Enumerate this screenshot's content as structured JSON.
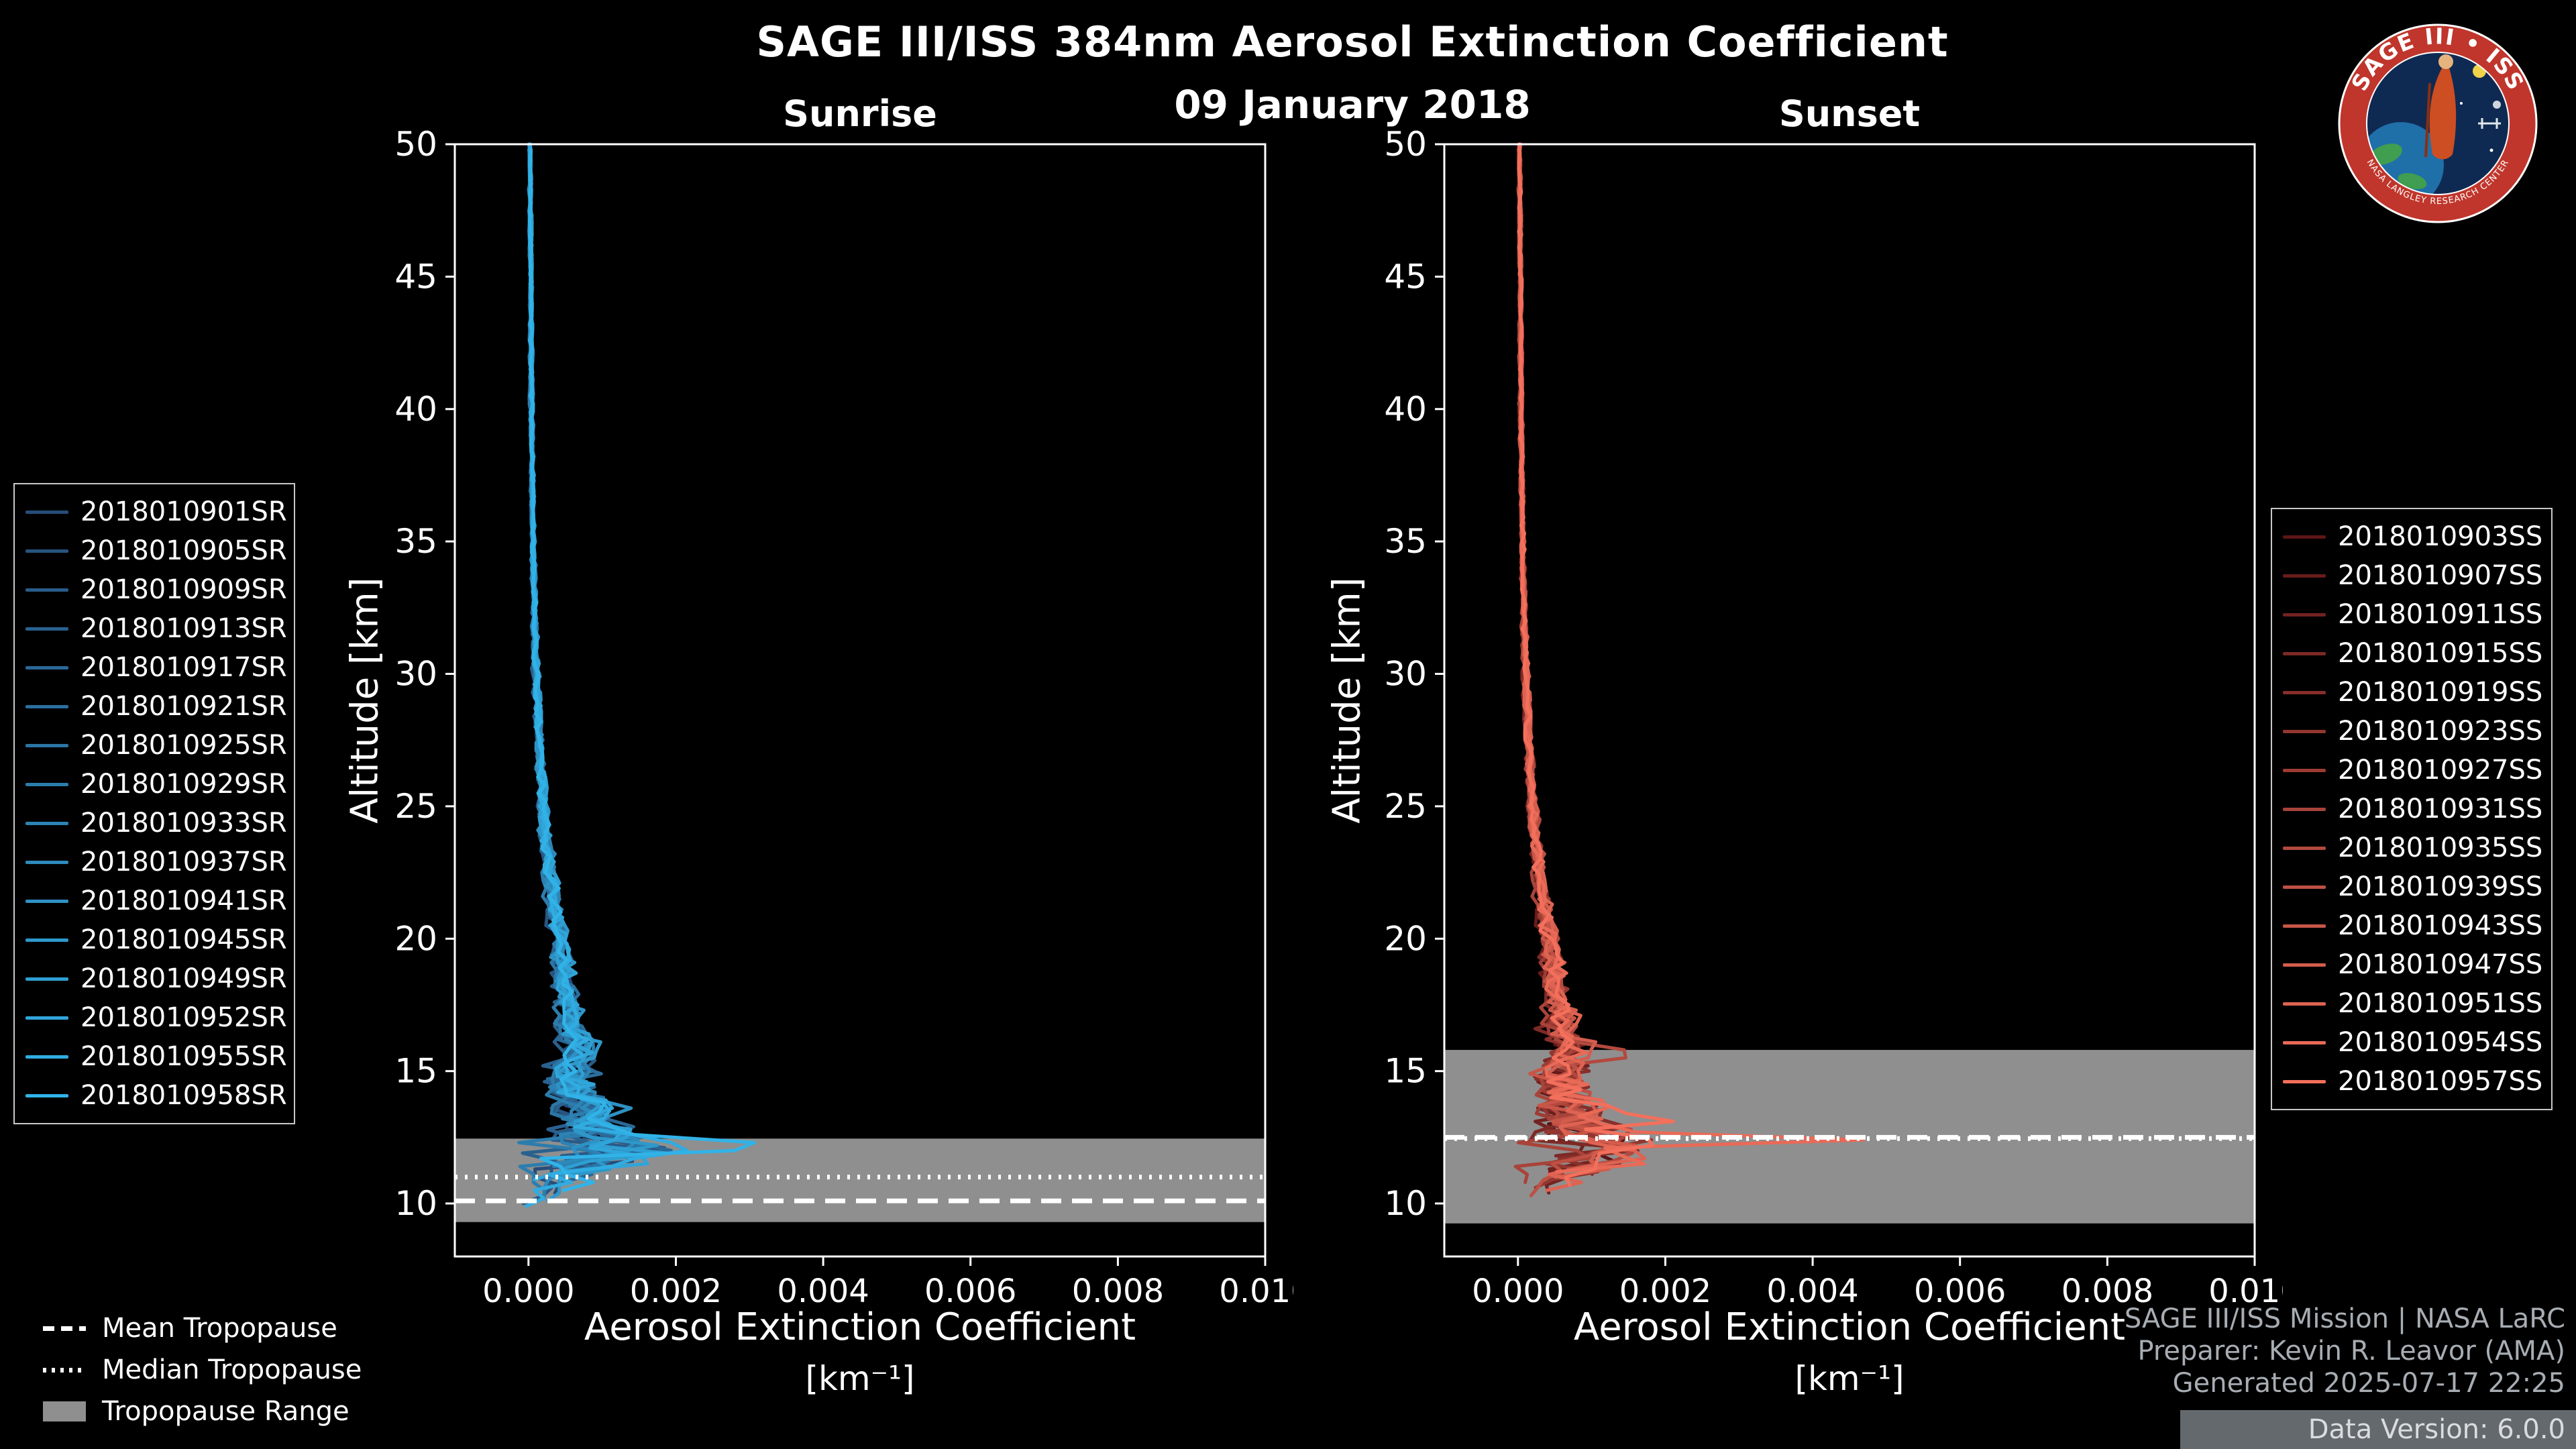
{
  "header": {
    "title": "SAGE III/ISS 384nm Aerosol Extinction Coefficient",
    "date": "09 January 2018"
  },
  "logo": {
    "arc_text": "SAGE III • ISS",
    "bottom_arc_text": "NASA LANGLEY RESEARCH CENTER"
  },
  "tropopause_legend": {
    "items": [
      {
        "label": "Mean Tropopause",
        "style": "dashed"
      },
      {
        "label": "Median Tropopause",
        "style": "dotted"
      },
      {
        "label": "Tropopause Range",
        "style": "band"
      }
    ]
  },
  "footer": {
    "lines": [
      "SAGE III/ISS Mission | NASA LaRC",
      "Preparer: Kevin R. Leavor (AMA)",
      "Generated 2025-07-17 22:25",
      "Data Version: 6.0.0"
    ]
  },
  "colors": {
    "background": "#000000",
    "axis": "#ffffff",
    "tropopause_band": "#8f8f8f",
    "footer_text": "#a7adb3",
    "footer_strip": "#64696d",
    "logo_ring_red": "#c0362c",
    "logo_inner_blue": "#0f2a52"
  },
  "chart_data": [
    {
      "panel": "sunrise",
      "type": "line",
      "title": "Sunrise",
      "xlabel": "Aerosol Extinction Coefficient",
      "xlabel_units": "[km⁻¹]",
      "ylabel": "Altitude [km]",
      "xlim": [
        -0.001,
        0.01
      ],
      "ylim": [
        8,
        50
      ],
      "xticks": [
        0.0,
        0.002,
        0.004,
        0.006,
        0.008,
        0.01
      ],
      "yticks": [
        10,
        15,
        20,
        25,
        30,
        35,
        40,
        45,
        50
      ],
      "color_start": "#274d79",
      "color_end": "#31b3e8",
      "series_labels": [
        "2018010901SR",
        "2018010905SR",
        "2018010909SR",
        "2018010913SR",
        "2018010917SR",
        "2018010921SR",
        "2018010925SR",
        "2018010929SR",
        "2018010933SR",
        "2018010937SR",
        "2018010941SR",
        "2018010945SR",
        "2018010949SR",
        "2018010952SR",
        "2018010955SR",
        "2018010958SR"
      ],
      "baseline": {
        "altitude": [
          9.8,
          10,
          10.5,
          11,
          11.5,
          12,
          12.5,
          13,
          13.5,
          14,
          14.5,
          15,
          15.5,
          16,
          17,
          18,
          19,
          20,
          21,
          22,
          24,
          26,
          28,
          30,
          32,
          35,
          40,
          45,
          50
        ],
        "extinction": [
          8e-05,
          0.0001,
          0.0002,
          0.0004,
          0.0007,
          0.0011,
          0.001,
          0.0008,
          0.0007,
          0.0006,
          0.00058,
          0.00055,
          0.00058,
          0.0006,
          0.00055,
          0.0005,
          0.00045,
          0.0004,
          0.00035,
          0.0003,
          0.00022,
          0.00017,
          0.00013,
          0.0001,
          8e-05,
          6e-05,
          4e-05,
          3e-05,
          2e-05
        ]
      },
      "spread": {
        "altitude": [
          9.8,
          10.5,
          11,
          11.5,
          12,
          12.5,
          13,
          14,
          15,
          16,
          17,
          18,
          20,
          23,
          26,
          30,
          35,
          50
        ],
        "amplitude": [
          0.0002,
          0.0004,
          0.0006,
          0.0009,
          0.0012,
          0.0009,
          0.0006,
          0.00045,
          0.0004,
          0.00035,
          0.00025,
          0.0002,
          0.00015,
          0.0001,
          7e-05,
          5e-05,
          3e-05,
          2e-05
        ]
      },
      "series_bottom_altitude": [
        10.4,
        11.2,
        10.0,
        11.6,
        10.8,
        11.9,
        11.0,
        10.2,
        11.4,
        10.6,
        11.8,
        10.1,
        11.3,
        10.9,
        9.9,
        10.5
      ],
      "spikes": [
        {
          "series": 15,
          "altitude": 12.2,
          "value": 0.002,
          "width": 0.22
        },
        {
          "series": 12,
          "altitude": 12.7,
          "value": 0.0014,
          "width": 0.2
        },
        {
          "series": 10,
          "altitude": 13.6,
          "value": 0.001,
          "width": 0.25
        }
      ],
      "tropopause": {
        "mean": 10.1,
        "median": 11.0,
        "range": [
          9.3,
          12.45
        ]
      }
    },
    {
      "panel": "sunset",
      "type": "line",
      "title": "Sunset",
      "xlabel": "Aerosol Extinction Coefficient",
      "xlabel_units": "[km⁻¹]",
      "ylabel": "Altitude [km]",
      "xlim": [
        -0.001,
        0.01
      ],
      "ylim": [
        8,
        50
      ],
      "xticks": [
        0.0,
        0.002,
        0.004,
        0.006,
        0.008,
        0.01
      ],
      "yticks": [
        10,
        15,
        20,
        25,
        30,
        35,
        40,
        45,
        50
      ],
      "color_start": "#5d1516",
      "color_end": "#f3705c",
      "series_labels": [
        "2018010903SS",
        "2018010907SS",
        "2018010911SS",
        "2018010915SS",
        "2018010919SS",
        "2018010923SS",
        "2018010927SS",
        "2018010931SS",
        "2018010935SS",
        "2018010939SS",
        "2018010943SS",
        "2018010947SS",
        "2018010951SS",
        "2018010954SS",
        "2018010957SS"
      ],
      "baseline": {
        "altitude": [
          9.6,
          10,
          10.5,
          11,
          11.5,
          12,
          12.5,
          13,
          13.5,
          14,
          14.5,
          15,
          15.5,
          16,
          17,
          18,
          19,
          20,
          21,
          22,
          24,
          26,
          28,
          30,
          32,
          35,
          40,
          45,
          50
        ],
        "extinction": [
          8e-05,
          0.0001,
          0.00025,
          0.0005,
          0.0008,
          0.001,
          0.00095,
          0.0008,
          0.0007,
          0.00065,
          0.0006,
          0.00058,
          0.0006,
          0.00062,
          0.00055,
          0.0005,
          0.00045,
          0.0004,
          0.00035,
          0.0003,
          0.00022,
          0.00017,
          0.00013,
          0.0001,
          8e-05,
          6e-05,
          4e-05,
          3e-05,
          2e-05
        ]
      },
      "spread": {
        "altitude": [
          9.6,
          10.5,
          11,
          11.5,
          12,
          12.5,
          13,
          13.5,
          14,
          15,
          16,
          17,
          18,
          20,
          23,
          26,
          30,
          35,
          50
        ],
        "amplitude": [
          0.0003,
          0.0005,
          0.0007,
          0.0009,
          0.0009,
          0.0008,
          0.0007,
          0.0006,
          0.0005,
          0.00045,
          0.0004,
          0.0003,
          0.00022,
          0.00015,
          0.0001,
          7e-05,
          5e-05,
          3e-05,
          2e-05
        ]
      },
      "series_bottom_altitude": [
        10.9,
        11.5,
        10.4,
        11.8,
        11.1,
        10.6,
        11.9,
        10.8,
        11.3,
        10.3,
        11.6,
        11.0,
        10.5,
        11.2,
        10.7
      ],
      "spikes": [
        {
          "series": 13,
          "altitude": 12.4,
          "value": 0.0036,
          "width": 0.2
        },
        {
          "series": 14,
          "altitude": 13.2,
          "value": 0.001,
          "width": 0.25
        },
        {
          "series": 8,
          "altitude": 15.6,
          "value": 0.0007,
          "width": 0.3
        }
      ],
      "tropopause": {
        "mean": 12.5,
        "median": 12.45,
        "range": [
          9.25,
          15.8
        ]
      }
    }
  ]
}
